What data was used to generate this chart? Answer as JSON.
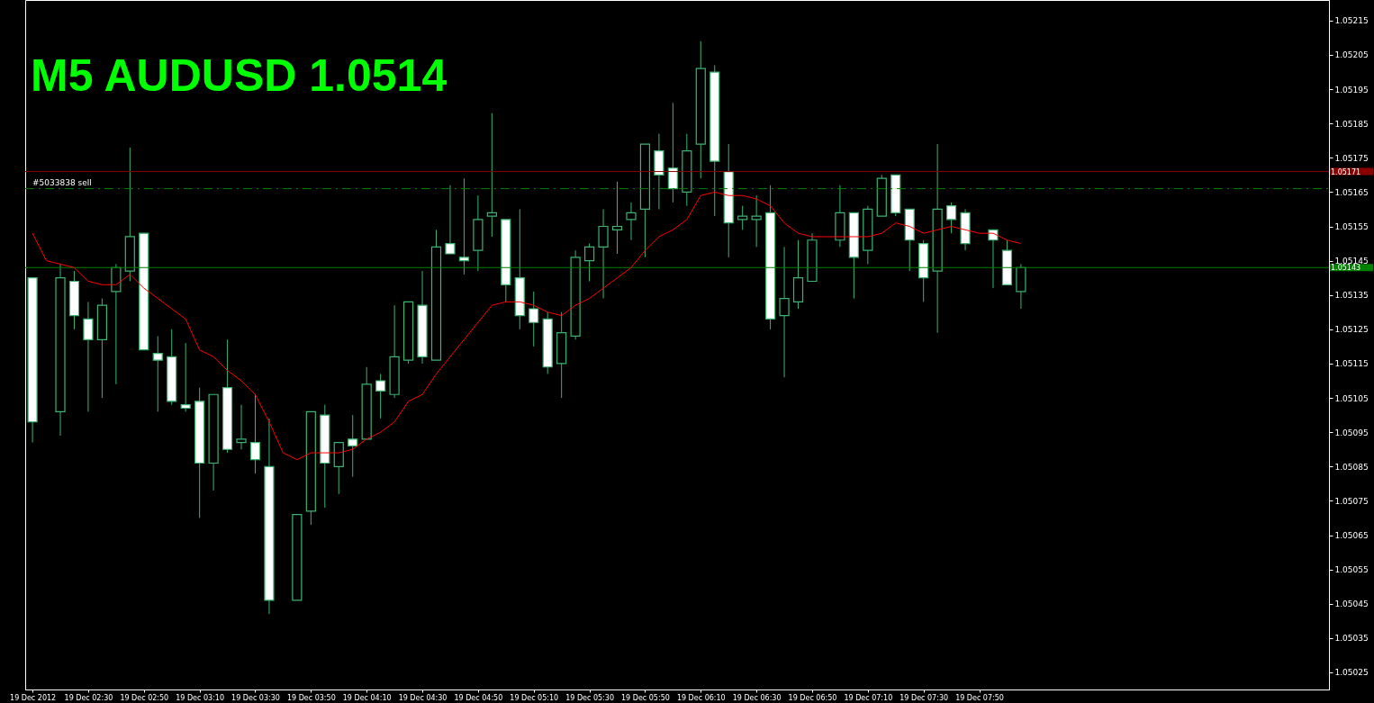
{
  "chart_data": {
    "type": "candlestick",
    "title": "M5 AUDUSD 1.0514",
    "color": "#3cb371",
    "x": [
      "2012-12-19T02:10",
      "2012-12-19T02:20",
      "2012-12-19T02:25",
      "2012-12-19T02:30",
      "2012-12-19T02:35",
      "2012-12-19T02:40",
      "2012-12-19T02:45",
      "2012-12-19T02:50",
      "2012-12-19T02:55",
      "2012-12-19T03:00",
      "2012-12-19T03:05",
      "2012-12-19T03:10",
      "2012-12-19T03:15",
      "2012-12-19T03:20",
      "2012-12-19T03:25",
      "2012-12-19T03:30",
      "2012-12-19T03:35",
      "2012-12-19T03:45",
      "2012-12-19T03:50",
      "2012-12-19T03:55",
      "2012-12-19T04:00",
      "2012-12-19T04:05",
      "2012-12-19T04:10",
      "2012-12-19T04:15",
      "2012-12-19T04:20",
      "2012-12-19T04:25",
      "2012-12-19T04:30",
      "2012-12-19T04:35",
      "2012-12-19T04:40",
      "2012-12-19T04:45",
      "2012-12-19T04:50",
      "2012-12-19T04:55",
      "2012-12-19T05:00",
      "2012-12-19T05:05",
      "2012-12-19T05:10",
      "2012-12-19T05:15",
      "2012-12-19T05:20",
      "2012-12-19T05:25",
      "2012-12-19T05:30",
      "2012-12-19T05:35",
      "2012-12-19T05:40",
      "2012-12-19T05:45",
      "2012-12-19T05:50",
      "2012-12-19T05:55",
      "2012-12-19T06:00",
      "2012-12-19T06:05",
      "2012-12-19T06:10",
      "2012-12-19T06:15",
      "2012-12-19T06:20",
      "2012-12-19T06:25",
      "2012-12-19T06:30",
      "2012-12-19T06:35",
      "2012-12-19T06:40",
      "2012-12-19T06:45",
      "2012-12-19T06:50",
      "2012-12-19T07:00",
      "2012-12-19T07:05",
      "2012-12-19T07:10",
      "2012-12-19T07:15",
      "2012-12-19T07:20",
      "2012-12-19T07:25",
      "2012-12-19T07:30",
      "2012-12-19T07:35",
      "2012-12-19T07:40",
      "2012-12-19T07:45",
      "2012-12-19T07:55",
      "2012-12-19T08:00",
      "2012-12-19T08:05"
    ],
    "ohlc": [
      [
        1.0514,
        1.0514,
        1.05092,
        1.05098
      ],
      [
        1.05101,
        1.05144,
        1.05094,
        1.0514
      ],
      [
        1.05139,
        1.05142,
        1.05125,
        1.05129
      ],
      [
        1.05128,
        1.05133,
        1.05101,
        1.05122
      ],
      [
        1.05122,
        1.05134,
        1.05105,
        1.05132
      ],
      [
        1.05136,
        1.05144,
        1.05109,
        1.05143
      ],
      [
        1.05142,
        1.05178,
        1.05139,
        1.05152
      ],
      [
        1.05153,
        1.05153,
        1.05119,
        1.05119
      ],
      [
        1.05118,
        1.05123,
        1.05101,
        1.05116
      ],
      [
        1.05117,
        1.05125,
        1.05103,
        1.05104
      ],
      [
        1.05103,
        1.05121,
        1.05101,
        1.05102
      ],
      [
        1.05104,
        1.05108,
        1.0507,
        1.05086
      ],
      [
        1.05086,
        1.05106,
        1.05078,
        1.05106
      ],
      [
        1.05108,
        1.05122,
        1.05089,
        1.0509
      ],
      [
        1.05092,
        1.05103,
        1.0509,
        1.05093
      ],
      [
        1.05092,
        1.05106,
        1.05083,
        1.05087
      ],
      [
        1.05085,
        1.05099,
        1.05042,
        1.05046
      ],
      [
        1.05046,
        1.05071,
        1.05046,
        1.05071
      ],
      [
        1.05072,
        1.05101,
        1.05068,
        1.05101
      ],
      [
        1.051,
        1.05103,
        1.05073,
        1.05086
      ],
      [
        1.05085,
        1.05092,
        1.05077,
        1.05092
      ],
      [
        1.05093,
        1.051,
        1.05082,
        1.05091
      ],
      [
        1.05093,
        1.05114,
        1.05093,
        1.05109
      ],
      [
        1.0511,
        1.05112,
        1.05099,
        1.05107
      ],
      [
        1.05106,
        1.05132,
        1.05105,
        1.05117
      ],
      [
        1.05116,
        1.05133,
        1.05115,
        1.05133
      ],
      [
        1.05132,
        1.05142,
        1.05115,
        1.05117
      ],
      [
        1.05116,
        1.05154,
        1.05116,
        1.05149
      ],
      [
        1.0515,
        1.05167,
        1.05147,
        1.05147
      ],
      [
        1.05146,
        1.05169,
        1.05141,
        1.05145
      ],
      [
        1.05148,
        1.05164,
        1.05142,
        1.05157
      ],
      [
        1.05158,
        1.05188,
        1.05152,
        1.05159
      ],
      [
        1.05157,
        1.05157,
        1.05133,
        1.05138
      ],
      [
        1.0514,
        1.0516,
        1.05125,
        1.05129
      ],
      [
        1.05131,
        1.05136,
        1.0512,
        1.05127
      ],
      [
        1.05128,
        1.0513,
        1.05112,
        1.05114
      ],
      [
        1.05115,
        1.0513,
        1.05105,
        1.05124
      ],
      [
        1.05123,
        1.05148,
        1.05122,
        1.05146
      ],
      [
        1.05145,
        1.0515,
        1.05139,
        1.05149
      ],
      [
        1.05149,
        1.0516,
        1.05134,
        1.05155
      ],
      [
        1.05154,
        1.05168,
        1.05147,
        1.05155
      ],
      [
        1.05157,
        1.05162,
        1.05151,
        1.05159
      ],
      [
        1.0516,
        1.05179,
        1.05146,
        1.05179
      ],
      [
        1.05177,
        1.05182,
        1.0516,
        1.0517
      ],
      [
        1.05172,
        1.05191,
        1.05162,
        1.05166
      ],
      [
        1.05165,
        1.05182,
        1.05161,
        1.05177
      ],
      [
        1.05179,
        1.05209,
        1.05169,
        1.05201
      ],
      [
        1.052,
        1.05202,
        1.05158,
        1.05174
      ],
      [
        1.05171,
        1.05179,
        1.05146,
        1.05156
      ],
      [
        1.05157,
        1.05161,
        1.05154,
        1.05158
      ],
      [
        1.05157,
        1.05164,
        1.05149,
        1.05158
      ],
      [
        1.05159,
        1.05167,
        1.05125,
        1.05128
      ],
      [
        1.05129,
        1.05149,
        1.05111,
        1.05134
      ],
      [
        1.05133,
        1.05151,
        1.05131,
        1.0514
      ],
      [
        1.05139,
        1.05153,
        1.05139,
        1.05151
      ],
      [
        1.05151,
        1.05167,
        1.05149,
        1.05159
      ],
      [
        1.05159,
        1.05159,
        1.05134,
        1.05146
      ],
      [
        1.05148,
        1.05161,
        1.05144,
        1.0516
      ],
      [
        1.05158,
        1.0517,
        1.05158,
        1.05169
      ],
      [
        1.0517,
        1.0517,
        1.05158,
        1.05159
      ],
      [
        1.0516,
        1.0516,
        1.05142,
        1.05151
      ],
      [
        1.0515,
        1.05151,
        1.05133,
        1.0514
      ],
      [
        1.05142,
        1.05179,
        1.05124,
        1.0516
      ],
      [
        1.05161,
        1.05162,
        1.05153,
        1.05157
      ],
      [
        1.05159,
        1.0516,
        1.05148,
        1.0515
      ],
      [
        1.05154,
        1.05154,
        1.05137,
        1.05151
      ],
      [
        1.05148,
        1.05151,
        1.05138,
        1.05138
      ],
      [
        1.05136,
        1.05144,
        1.05131,
        1.05143
      ]
    ],
    "series": [
      {
        "type": "line",
        "color": "#ff0000",
        "x": [
          "2012-12-19T02:10",
          "2012-12-19T02:15",
          "2012-12-19T02:20",
          "2012-12-19T02:25",
          "2012-12-19T02:30",
          "2012-12-19T02:35",
          "2012-12-19T02:40",
          "2012-12-19T02:45",
          "2012-12-19T02:50",
          "2012-12-19T02:55",
          "2012-12-19T03:00",
          "2012-12-19T03:05",
          "2012-12-19T03:10",
          "2012-12-19T03:15",
          "2012-12-19T03:20",
          "2012-12-19T03:25",
          "2012-12-19T03:30",
          "2012-12-19T03:35",
          "2012-12-19T03:40",
          "2012-12-19T03:45",
          "2012-12-19T03:50",
          "2012-12-19T03:55",
          "2012-12-19T04:00",
          "2012-12-19T04:05",
          "2012-12-19T04:10",
          "2012-12-19T04:15",
          "2012-12-19T04:20",
          "2012-12-19T04:25",
          "2012-12-19T04:30",
          "2012-12-19T04:35",
          "2012-12-19T04:40",
          "2012-12-19T04:45",
          "2012-12-19T04:50",
          "2012-12-19T04:55",
          "2012-12-19T05:00",
          "2012-12-19T05:05",
          "2012-12-19T05:10",
          "2012-12-19T05:15",
          "2012-12-19T05:20",
          "2012-12-19T05:25",
          "2012-12-19T05:30",
          "2012-12-19T05:35",
          "2012-12-19T05:40",
          "2012-12-19T05:45",
          "2012-12-19T05:50",
          "2012-12-19T05:55",
          "2012-12-19T06:00",
          "2012-12-19T06:05",
          "2012-12-19T06:10",
          "2012-12-19T06:15",
          "2012-12-19T06:20",
          "2012-12-19T06:25",
          "2012-12-19T06:30",
          "2012-12-19T06:35",
          "2012-12-19T06:40",
          "2012-12-19T06:45",
          "2012-12-19T06:50",
          "2012-12-19T06:55",
          "2012-12-19T07:00",
          "2012-12-19T07:05",
          "2012-12-19T07:10",
          "2012-12-19T07:15",
          "2012-12-19T07:20",
          "2012-12-19T07:25",
          "2012-12-19T07:30",
          "2012-12-19T07:35",
          "2012-12-19T07:40",
          "2012-12-19T07:45",
          "2012-12-19T07:50",
          "2012-12-19T07:55",
          "2012-12-19T08:00",
          "2012-12-19T08:05"
        ],
        "values": [
          1.05153,
          1.05145,
          1.05144,
          1.05143,
          1.05139,
          1.05138,
          1.05138,
          1.05141,
          1.05137,
          1.05134,
          1.05131,
          1.05128,
          1.05119,
          1.05117,
          1.05113,
          1.0511,
          1.05106,
          1.05098,
          1.05089,
          1.05087,
          1.05089,
          1.05089,
          1.05089,
          1.0509,
          1.05093,
          1.05095,
          1.05098,
          1.05104,
          1.05106,
          1.05112,
          1.05117,
          1.05122,
          1.05127,
          1.05132,
          1.05133,
          1.05133,
          1.05132,
          1.0513,
          1.05129,
          1.05132,
          1.05134,
          1.05137,
          1.0514,
          1.05143,
          1.05148,
          1.05152,
          1.05154,
          1.05157,
          1.05164,
          1.05165,
          1.05164,
          1.05164,
          1.05163,
          1.05161,
          1.05156,
          1.05153,
          1.05152,
          1.05152,
          1.05152,
          1.05152,
          1.05152,
          1.05153,
          1.05156,
          1.05155,
          1.05153,
          1.05154,
          1.05155,
          1.05154,
          1.05153,
          1.05153,
          1.05151,
          1.0515
        ]
      }
    ],
    "ref_lines": [
      {
        "axis": "y",
        "value": 1.05171,
        "label": "1.05171",
        "color": "#8b0000"
      },
      {
        "axis": "y",
        "value": 1.05143,
        "label": "1.05143",
        "color": "#008000"
      },
      {
        "axis": "y",
        "value": 1.05166,
        "label": "#5033838 sell",
        "color": "#008000",
        "line_style": "dashed"
      }
    ],
    "xlim": [
      "2012-12-19T02:09",
      "2012-12-19T09:54"
    ],
    "xticks": [
      {
        "value": "2012-12-19T02:10",
        "label": "19 Dec 2012"
      },
      {
        "value": "2012-12-19T02:30",
        "label": "19 Dec 02:30"
      },
      {
        "value": "2012-12-19T02:50",
        "label": "19 Dec 02:50"
      },
      {
        "value": "2012-12-19T03:10",
        "label": "19 Dec 03:10"
      },
      {
        "value": "2012-12-19T03:30",
        "label": "19 Dec 03:30"
      },
      {
        "value": "2012-12-19T03:50",
        "label": "19 Dec 03:50"
      },
      {
        "value": "2012-12-19T04:10",
        "label": "19 Dec 04:10"
      },
      {
        "value": "2012-12-19T04:30",
        "label": "19 Dec 04:30"
      },
      {
        "value": "2012-12-19T04:50",
        "label": "19 Dec 04:50"
      },
      {
        "value": "2012-12-19T05:10",
        "label": "19 Dec 05:10"
      },
      {
        "value": "2012-12-19T05:30",
        "label": "19 Dec 05:30"
      },
      {
        "value": "2012-12-19T05:50",
        "label": "19 Dec 05:50"
      },
      {
        "value": "2012-12-19T06:10",
        "label": "19 Dec 06:10"
      },
      {
        "value": "2012-12-19T06:30",
        "label": "19 Dec 06:30"
      },
      {
        "value": "2012-12-19T06:50",
        "label": "19 Dec 06:50"
      },
      {
        "value": "2012-12-19T07:10",
        "label": "19 Dec 07:10"
      },
      {
        "value": "2012-12-19T07:30",
        "label": "19 Dec 07:30"
      },
      {
        "value": "2012-12-19T07:50",
        "label": "19 Dec 07:50"
      }
    ],
    "ylim": [
      1.0502,
      1.05221
    ],
    "yticks": [
      1.05025,
      1.05035,
      1.05045,
      1.05055,
      1.05065,
      1.05075,
      1.05085,
      1.05095,
      1.05105,
      1.05115,
      1.05125,
      1.05135,
      1.05145,
      1.05155,
      1.05165,
      1.05175,
      1.05185,
      1.05195,
      1.05205,
      1.05215
    ],
    "grid": false
  }
}
